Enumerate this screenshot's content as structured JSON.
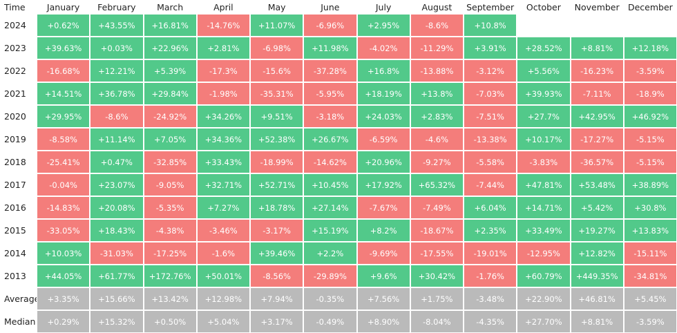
{
  "table": {
    "header": [
      "Time",
      "January",
      "February",
      "March",
      "April",
      "May",
      "June",
      "July",
      "August",
      "September",
      "October",
      "November",
      "December"
    ],
    "colors": {
      "positive": "#52c98a",
      "negative": "#f47d7b",
      "summary": "#bababa"
    },
    "rows": [
      {
        "label": "2024",
        "cells": [
          "+0.62%",
          "+43.55%",
          "+16.81%",
          "-14.76%",
          "+11.07%",
          "-6.96%",
          "+2.95%",
          "-8.6%",
          "+10.8%"
        ]
      },
      {
        "label": "2023",
        "cells": [
          "+39.63%",
          "+0.03%",
          "+22.96%",
          "+2.81%",
          "-6.98%",
          "+11.98%",
          "-4.02%",
          "-11.29%",
          "+3.91%",
          "+28.52%",
          "+8.81%",
          "+12.18%"
        ]
      },
      {
        "label": "2022",
        "cells": [
          "-16.68%",
          "+12.21%",
          "+5.39%",
          "-17.3%",
          "-15.6%",
          "-37.28%",
          "+16.8%",
          "-13.88%",
          "-3.12%",
          "+5.56%",
          "-16.23%",
          "-3.59%"
        ]
      },
      {
        "label": "2021",
        "cells": [
          "+14.51%",
          "+36.78%",
          "+29.84%",
          "-1.98%",
          "-35.31%",
          "-5.95%",
          "+18.19%",
          "+13.8%",
          "-7.03%",
          "+39.93%",
          "-7.11%",
          "-18.9%"
        ]
      },
      {
        "label": "2020",
        "cells": [
          "+29.95%",
          "-8.6%",
          "-24.92%",
          "+34.26%",
          "+9.51%",
          "-3.18%",
          "+24.03%",
          "+2.83%",
          "-7.51%",
          "+27.7%",
          "+42.95%",
          "+46.92%"
        ]
      },
      {
        "label": "2019",
        "cells": [
          "-8.58%",
          "+11.14%",
          "+7.05%",
          "+34.36%",
          "+52.38%",
          "+26.67%",
          "-6.59%",
          "-4.6%",
          "-13.38%",
          "+10.17%",
          "-17.27%",
          "-5.15%"
        ]
      },
      {
        "label": "2018",
        "cells": [
          "-25.41%",
          "+0.47%",
          "-32.85%",
          "+33.43%",
          "-18.99%",
          "-14.62%",
          "+20.96%",
          "-9.27%",
          "-5.58%",
          "-3.83%",
          "-36.57%",
          "-5.15%"
        ]
      },
      {
        "label": "2017",
        "cells": [
          "-0.04%",
          "+23.07%",
          "-9.05%",
          "+32.71%",
          "+52.71%",
          "+10.45%",
          "+17.92%",
          "+65.32%",
          "-7.44%",
          "+47.81%",
          "+53.48%",
          "+38.89%"
        ]
      },
      {
        "label": "2016",
        "cells": [
          "-14.83%",
          "+20.08%",
          "-5.35%",
          "+7.27%",
          "+18.78%",
          "+27.14%",
          "-7.67%",
          "-7.49%",
          "+6.04%",
          "+14.71%",
          "+5.42%",
          "+30.8%"
        ]
      },
      {
        "label": "2015",
        "cells": [
          "-33.05%",
          "+18.43%",
          "-4.38%",
          "-3.46%",
          "-3.17%",
          "+15.19%",
          "+8.2%",
          "-18.67%",
          "+2.35%",
          "+33.49%",
          "+19.27%",
          "+13.83%"
        ]
      },
      {
        "label": "2014",
        "cells": [
          "+10.03%",
          "-31.03%",
          "-17.25%",
          "-1.6%",
          "+39.46%",
          "+2.2%",
          "-9.69%",
          "-17.55%",
          "-19.01%",
          "-12.95%",
          "+12.82%",
          "-15.11%"
        ]
      },
      {
        "label": "2013",
        "cells": [
          "+44.05%",
          "+61.77%",
          "+172.76%",
          "+50.01%",
          "-8.56%",
          "-29.89%",
          "+9.6%",
          "+30.42%",
          "-1.76%",
          "+60.79%",
          "+449.35%",
          "-34.81%"
        ]
      }
    ],
    "summary_rows": [
      {
        "label": "Average",
        "cells": [
          "+3.35%",
          "+15.66%",
          "+13.42%",
          "+12.98%",
          "+7.94%",
          "-0.35%",
          "+7.56%",
          "+1.75%",
          "-3.48%",
          "+22.90%",
          "+46.81%",
          "+5.45%"
        ]
      },
      {
        "label": "Median",
        "cells": [
          "+0.29%",
          "+15.32%",
          "+0.50%",
          "+5.04%",
          "+3.17%",
          "-0.49%",
          "+8.90%",
          "-8.04%",
          "-4.35%",
          "+27.70%",
          "+8.81%",
          "-3.59%"
        ]
      }
    ]
  }
}
